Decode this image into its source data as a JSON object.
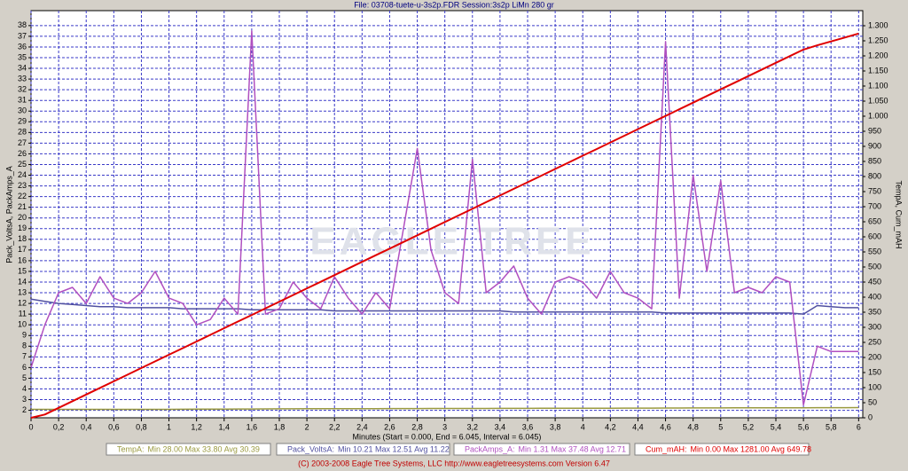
{
  "chart_data": {
    "type": "line",
    "title": "File: 03708-tuete-u-3s2p.FDR   Session:3s2p LiMn 280 gr",
    "ylabel": "Pack_VoltsA, PackAmps_A",
    "y2label": "TempA, Cum_mAH",
    "xlabel": "Minutes (Start = 0.000, End = 6.045, Interval = 6.045)",
    "watermark": "EAGLE TREE",
    "footer": "(C) 2003-2008 Eagle Tree Systems, LLC     http://www.eagletreesystems.com     Version 6.47",
    "grid": true,
    "xlim": [
      0,
      6.03
    ],
    "ylim": [
      1.3,
      39.4
    ],
    "y2lim": [
      0,
      1350
    ],
    "xticks": [
      0,
      {
        "value": 0.2,
        "label": "0,2"
      },
      {
        "value": 0.4,
        "label": "0,4"
      },
      {
        "value": 0.6,
        "label": "0,6"
      },
      {
        "value": 0.8,
        "label": "0,8"
      },
      1,
      {
        "value": 1.2,
        "label": "1,2"
      },
      {
        "value": 1.4,
        "label": "1,4"
      },
      {
        "value": 1.6,
        "label": "1,6"
      },
      {
        "value": 1.8,
        "label": "1,8"
      },
      2,
      {
        "value": 2.2,
        "label": "2,2"
      },
      {
        "value": 2.4,
        "label": "2,4"
      },
      {
        "value": 2.6,
        "label": "2,6"
      },
      {
        "value": 2.8,
        "label": "2,8"
      },
      3,
      {
        "value": 3.2,
        "label": "3,2"
      },
      {
        "value": 3.4,
        "label": "3,4"
      },
      {
        "value": 3.6,
        "label": "3,6"
      },
      {
        "value": 3.8,
        "label": "3,8"
      },
      4,
      {
        "value": 4.2,
        "label": "4,2"
      },
      {
        "value": 4.4,
        "label": "4,4"
      },
      {
        "value": 4.6,
        "label": "4,6"
      },
      {
        "value": 4.8,
        "label": "4,8"
      },
      5,
      {
        "value": 5.2,
        "label": "5,2"
      },
      {
        "value": 5.4,
        "label": "5,4"
      },
      {
        "value": 5.6,
        "label": "5,6"
      },
      {
        "value": 5.8,
        "label": "5,8"
      },
      6
    ],
    "yticks": [
      2,
      3,
      4,
      5,
      6,
      7,
      8,
      9,
      10,
      11,
      12,
      13,
      14,
      15,
      16,
      17,
      18,
      19,
      20,
      21,
      22,
      23,
      24,
      25,
      26,
      27,
      28,
      29,
      30,
      31,
      32,
      33,
      34,
      35,
      36,
      37,
      38
    ],
    "y2ticks": [
      0,
      50,
      100,
      150,
      200,
      250,
      300,
      350,
      400,
      450,
      500,
      550,
      600,
      650,
      700,
      750,
      800,
      850,
      900,
      950,
      {
        "value": 1000,
        "label": "1.000"
      },
      {
        "value": 1050,
        "label": "1.050"
      },
      {
        "value": 1100,
        "label": "1.100"
      },
      {
        "value": 1150,
        "label": "1.150"
      },
      {
        "value": 1200,
        "label": "1.200"
      },
      {
        "value": 1250,
        "label": "1.250"
      },
      {
        "value": 1300,
        "label": "1.300"
      }
    ],
    "x": [
      0,
      0.1,
      0.2,
      0.3,
      0.4,
      0.5,
      0.6,
      0.7,
      0.8,
      0.9,
      1,
      1.1,
      1.2,
      1.3,
      1.4,
      1.5,
      1.6,
      1.7,
      1.8,
      1.9,
      2,
      2.1,
      2.2,
      2.3,
      2.4,
      2.5,
      2.6,
      2.7,
      2.8,
      2.9,
      3,
      3.1,
      3.2,
      3.3,
      3.4,
      3.5,
      3.6,
      3.7,
      3.8,
      3.9,
      4,
      4.1,
      4.2,
      4.3,
      4.4,
      4.5,
      4.6,
      4.7,
      4.8,
      4.9,
      5,
      5.1,
      5.2,
      5.3,
      5.4,
      5.5,
      5.6,
      5.7,
      5.8,
      5.9,
      6
    ],
    "series": [
      {
        "name": "TempA:",
        "stats": "Min 28.00   Max 33.80   Avg 30.39",
        "color": "#9a9a40",
        "axis": "y2",
        "values": [
          28,
          28,
          28,
          28,
          28,
          28,
          28,
          28,
          28,
          28,
          28,
          28.2,
          28.4,
          28.6,
          28.8,
          29,
          29.2,
          29.4,
          29.6,
          29.8,
          30,
          30,
          30.1,
          30.2,
          30.3,
          30.4,
          30.5,
          30.6,
          30.7,
          30.8,
          30.9,
          31,
          31,
          31,
          31.1,
          31.2,
          31.3,
          31.4,
          31.5,
          31.6,
          31.7,
          31.8,
          31.9,
          32,
          32.1,
          32.2,
          32.3,
          32.4,
          32.5,
          32.6,
          32.7,
          32.8,
          32.9,
          33,
          33.1,
          33.2,
          33.3,
          33.4,
          33.5,
          33.6,
          33.7
        ]
      },
      {
        "name": "Pack_VoltsA:",
        "stats": "Min 10.21   Max 12.51   Avg 11.22",
        "color": "#5050a0",
        "values": [
          12.4,
          12.2,
          12,
          11.9,
          11.8,
          11.7,
          11.7,
          11.6,
          11.6,
          11.6,
          11.6,
          11.5,
          11.5,
          11.5,
          11.5,
          11.5,
          11.4,
          11.4,
          11.4,
          11.4,
          11.4,
          11.4,
          11.3,
          11.3,
          11.3,
          11.3,
          11.3,
          11.3,
          11.3,
          11.3,
          11.3,
          11.3,
          11.3,
          11.3,
          11.3,
          11.2,
          11.2,
          11.2,
          11.2,
          11.2,
          11.2,
          11.2,
          11.2,
          11.2,
          11.2,
          11.2,
          11.1,
          11.1,
          11.1,
          11.1,
          11.1,
          11.1,
          11.1,
          11.1,
          11.1,
          11.1,
          11,
          11.8,
          11.7,
          11.6,
          11.6
        ]
      },
      {
        "name": "PackAmps_A:",
        "stats": "Min 1.31   Max 37.48   Avg 12.71",
        "color": "#b050c0",
        "values": [
          6,
          10,
          13,
          13.5,
          12,
          14.5,
          12.5,
          12,
          13,
          15,
          12.5,
          12,
          10,
          10.5,
          12.5,
          11,
          37.5,
          11,
          11.5,
          14,
          12.5,
          11.5,
          14.5,
          12.5,
          11,
          13,
          11.5,
          19,
          26.5,
          17,
          13,
          12,
          25.5,
          13,
          14,
          15.5,
          12.5,
          11,
          14,
          14.5,
          14,
          12.5,
          15,
          13,
          12.5,
          11.5,
          36.5,
          12.5,
          24,
          15,
          23.5,
          13,
          13.5,
          13,
          14.5,
          14,
          2.5,
          8,
          7.5,
          7.5,
          7.5
        ]
      },
      {
        "name": "Cum_mAH:",
        "stats": "Min 0.00   Max 1281.00   Avg 649.78",
        "color": "#e00000",
        "axis": "y2",
        "values": [
          0,
          11,
          33,
          55,
          77,
          99,
          121,
          143,
          165,
          187,
          209,
          231,
          253,
          275,
          297,
          319,
          341,
          363,
          385,
          407,
          429,
          451,
          473,
          495,
          517,
          539,
          561,
          583,
          605,
          627,
          649,
          671,
          693,
          715,
          737,
          759,
          781,
          803,
          825,
          847,
          869,
          891,
          913,
          935,
          957,
          979,
          1001,
          1023,
          1045,
          1067,
          1089,
          1111,
          1133,
          1155,
          1177,
          1199,
          1221,
          1235,
          1248,
          1261,
          1274
        ]
      }
    ]
  }
}
